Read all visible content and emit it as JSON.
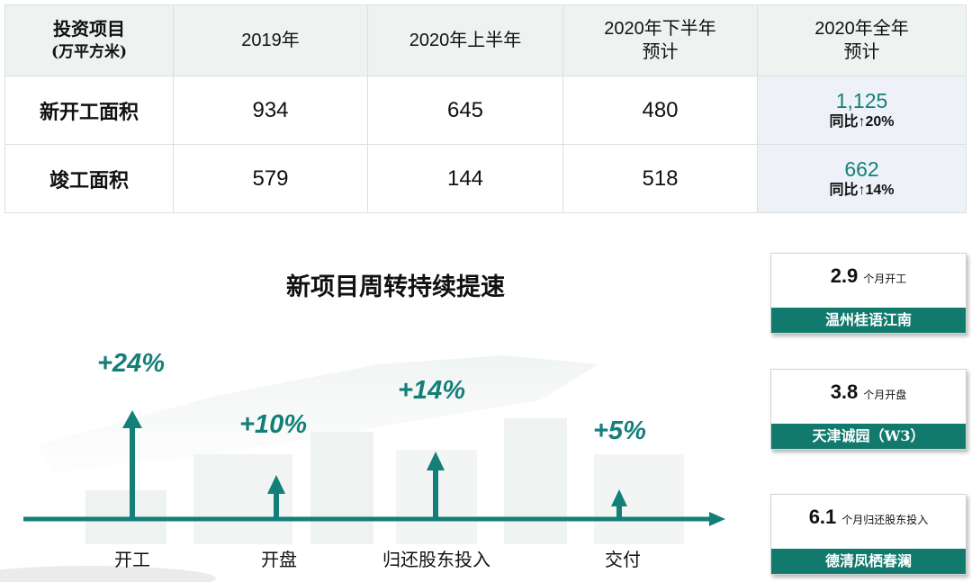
{
  "table": {
    "header": {
      "col0_line1": "投资项目",
      "col0_line2": "(万平方米)",
      "col1": "2019年",
      "col2": "2020年上半年",
      "col3_line1": "2020年下半年",
      "col3_line2": "预计",
      "col4_line1": "2020年全年",
      "col4_line2": "预计"
    },
    "rows": [
      {
        "label": "新开工面积",
        "y2019": "934",
        "h1_2020": "645",
        "h2_2020": "480",
        "full_2020": "1,125",
        "yoy": "同比↑20%"
      },
      {
        "label": "竣工面积",
        "y2019": "579",
        "h1_2020": "144",
        "h2_2020": "518",
        "full_2020": "662",
        "yoy": "同比↑14%"
      }
    ]
  },
  "timeline": {
    "title": "新项目周转持续提速",
    "stages": [
      {
        "label": "开工",
        "pct": "+24%"
      },
      {
        "label": "开盘",
        "pct": "+10%"
      },
      {
        "label": "归还股东投入",
        "pct": "+14%"
      },
      {
        "label": "交付",
        "pct": "+5%"
      }
    ],
    "color": "#147f78"
  },
  "cards": [
    {
      "value": "2.9",
      "unit": "个月开工",
      "project": "温州桂语江南"
    },
    {
      "value": "3.8",
      "unit": "个月开盘",
      "project": "天津诚园（W3）"
    },
    {
      "value": "6.1",
      "unit": "个月归还股东投入",
      "project": "德清凤栖春澜"
    }
  ]
}
